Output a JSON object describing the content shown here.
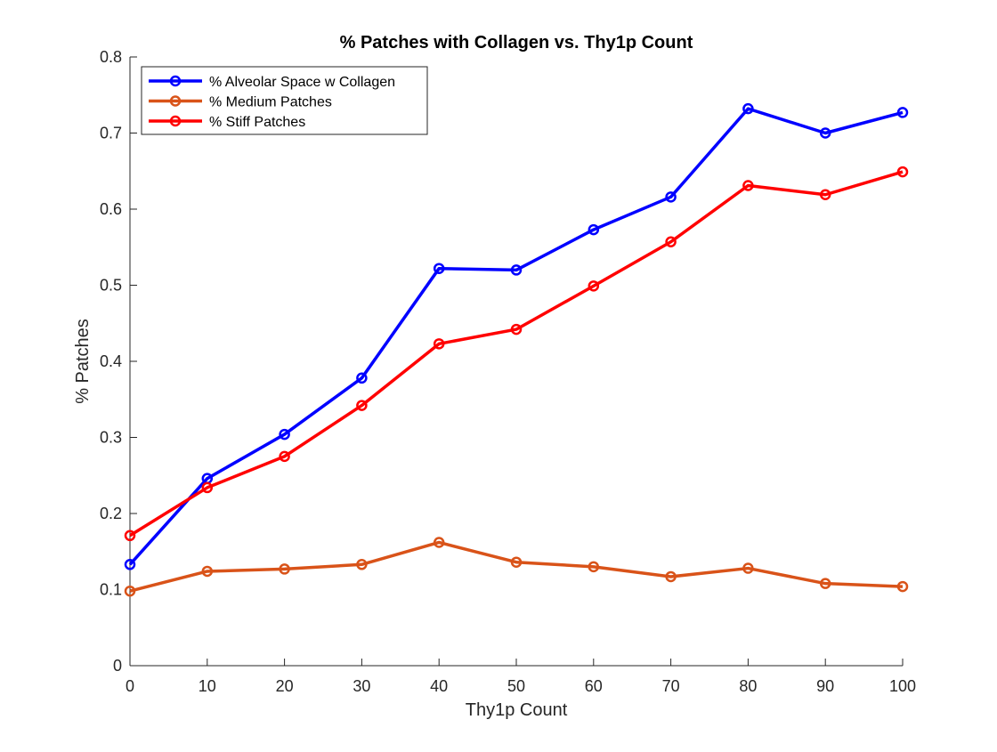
{
  "chart_data": {
    "type": "line",
    "title": "% Patches with Collagen vs. Thy1p Count",
    "xlabel": "Thy1p Count",
    "ylabel": "% Patches",
    "xlim": [
      0,
      100
    ],
    "ylim": [
      0,
      0.8
    ],
    "xticks": [
      "0",
      "10",
      "20",
      "30",
      "40",
      "50",
      "60",
      "70",
      "80",
      "90",
      "100"
    ],
    "yticks": [
      "0",
      "0.1",
      "0.2",
      "0.3",
      "0.4",
      "0.5",
      "0.6",
      "0.7",
      "0.8"
    ],
    "grid": false,
    "legend": "top-left",
    "x": [
      0,
      10,
      20,
      30,
      40,
      50,
      60,
      70,
      80,
      90,
      100
    ],
    "series": [
      {
        "name": "% Alveolar Space w Collagen",
        "color": "#0000ff",
        "marker": "circle",
        "values": [
          0.133,
          0.246,
          0.304,
          0.378,
          0.522,
          0.52,
          0.573,
          0.616,
          0.732,
          0.7,
          0.727
        ]
      },
      {
        "name": "% Medium Patches",
        "color": "#d95319",
        "marker": "circle",
        "values": [
          0.098,
          0.124,
          0.127,
          0.133,
          0.162,
          0.136,
          0.13,
          0.117,
          0.128,
          0.108,
          0.104
        ]
      },
      {
        "name": "% Stiff Patches",
        "color": "#ff0000",
        "marker": "circle",
        "values": [
          0.171,
          0.234,
          0.275,
          0.342,
          0.423,
          0.442,
          0.499,
          0.557,
          0.631,
          0.619,
          0.649
        ]
      }
    ]
  }
}
